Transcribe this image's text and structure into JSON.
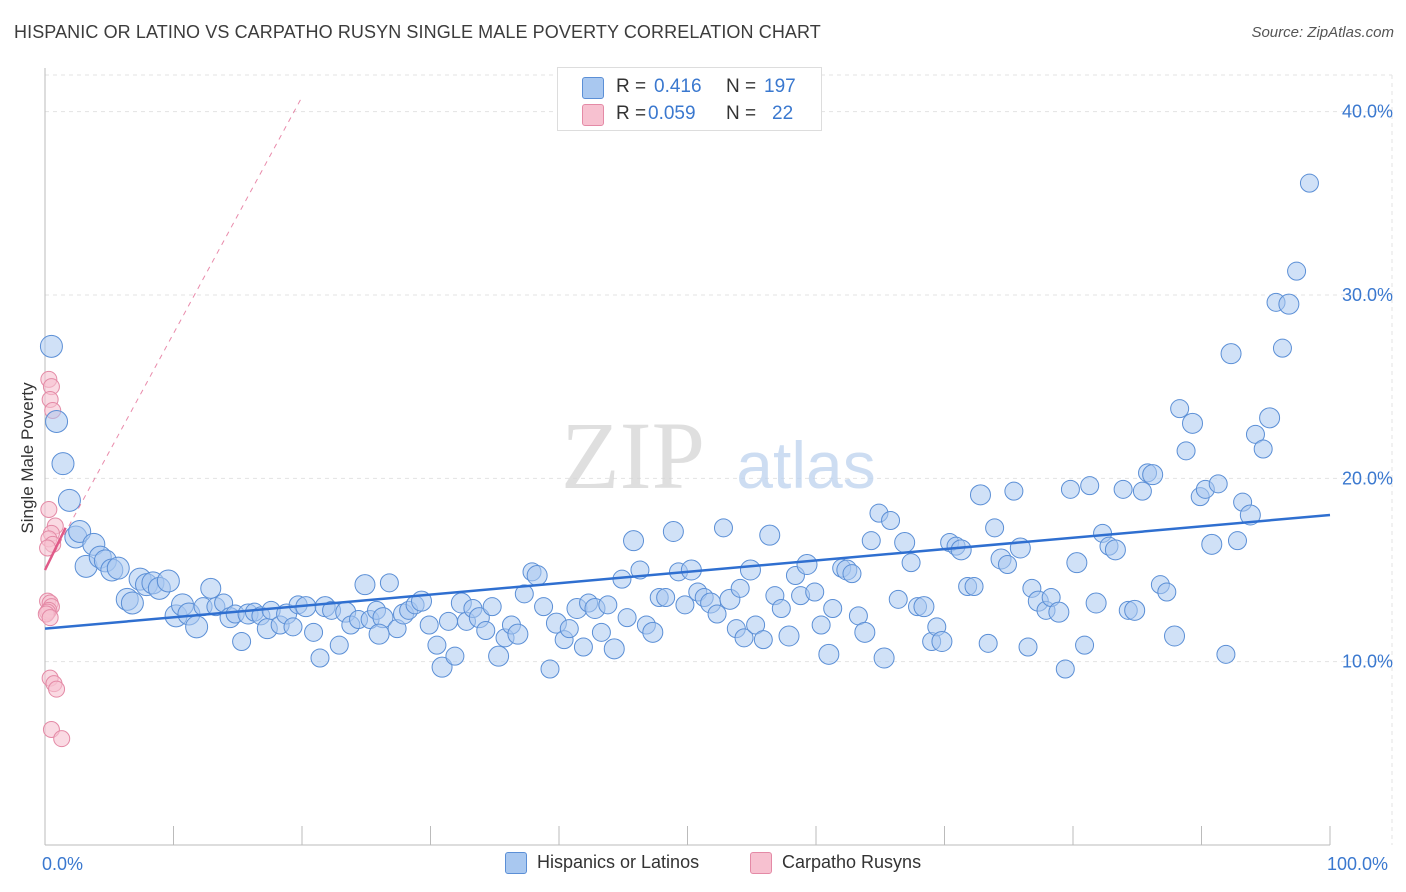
{
  "title": "HISPANIC OR LATINO VS CARPATHO RUSYN SINGLE MALE POVERTY CORRELATION CHART",
  "source": "Source: ZipAtlas.com",
  "watermark": {
    "zip": "ZIP",
    "atlas": "atlas"
  },
  "stats": {
    "r_label": "R =",
    "n_label": "N =",
    "rows": [
      {
        "r": "0.416",
        "n": "197"
      },
      {
        "r": "0.059",
        "n": "22"
      }
    ]
  },
  "legend": {
    "items": [
      {
        "label": "Hispanics or Latinos"
      },
      {
        "label": "Carpatho Rusyns"
      }
    ]
  },
  "colors": {
    "blue_fill": "#a9c8f0",
    "blue_stroke": "#5b8fd6",
    "blue_line": "#2f6fd0",
    "pink_fill": "#f7c1d0",
    "pink_stroke": "#e48aa6",
    "pink_line": "#e05a88",
    "grid": "#e3e3e3",
    "label": "#3a78cf"
  },
  "chart_data": {
    "type": "scatter",
    "title": "HISPANIC OR LATINO VS CARPATHO RUSYN SINGLE MALE POVERTY CORRELATION CHART",
    "xlabel": "",
    "ylabel": "Single Male Poverty",
    "xlim": [
      0,
      100
    ],
    "ylim": [
      0,
      42
    ],
    "x_tick_labels": [
      "0.0%",
      "100.0%"
    ],
    "y_ticks": [
      10,
      20,
      30,
      40
    ],
    "y_tick_labels": [
      "10.0%",
      "20.0%",
      "30.0%",
      "40.0%"
    ],
    "grid": true,
    "series": [
      {
        "name": "Hispanics or Latinos",
        "r": 0.416,
        "n": 197,
        "trend": {
          "x": [
            0,
            100
          ],
          "y": [
            11.8,
            18.0
          ]
        },
        "points": [
          [
            0.5,
            27.2
          ],
          [
            0.9,
            23.1
          ],
          [
            1.4,
            20.8
          ],
          [
            1.9,
            18.8
          ],
          [
            2.4,
            16.8
          ],
          [
            2.7,
            17.1
          ],
          [
            3.2,
            15.2
          ],
          [
            3.8,
            16.4
          ],
          [
            4.3,
            15.7
          ],
          [
            4.7,
            15.5
          ],
          [
            5.2,
            15.0
          ],
          [
            5.7,
            15.1
          ],
          [
            6.4,
            13.4
          ],
          [
            6.8,
            13.2
          ],
          [
            7.4,
            14.5
          ],
          [
            7.9,
            14.2
          ],
          [
            8.4,
            14.3
          ],
          [
            8.9,
            14.0
          ],
          [
            9.6,
            14.4
          ],
          [
            10.2,
            12.5
          ],
          [
            10.7,
            13.1
          ],
          [
            11.2,
            12.6
          ],
          [
            11.8,
            11.9
          ],
          [
            12.3,
            13.0
          ],
          [
            12.9,
            14.0
          ],
          [
            13.3,
            13.0
          ],
          [
            13.9,
            13.2
          ],
          [
            14.4,
            12.4
          ],
          [
            14.8,
            12.6
          ],
          [
            15.3,
            11.1
          ],
          [
            15.8,
            12.6
          ],
          [
            16.3,
            12.7
          ],
          [
            16.8,
            12.5
          ],
          [
            17.3,
            11.8
          ],
          [
            17.6,
            12.8
          ],
          [
            18.3,
            12.0
          ],
          [
            18.8,
            12.6
          ],
          [
            19.3,
            11.9
          ],
          [
            19.7,
            13.1
          ],
          [
            20.3,
            13.0
          ],
          [
            20.9,
            11.6
          ],
          [
            21.4,
            10.2
          ],
          [
            21.8,
            13.0
          ],
          [
            22.3,
            12.8
          ],
          [
            22.9,
            10.9
          ],
          [
            23.4,
            12.7
          ],
          [
            23.8,
            12.0
          ],
          [
            24.4,
            12.3
          ],
          [
            24.9,
            14.2
          ],
          [
            25.3,
            12.3
          ],
          [
            25.8,
            12.8
          ],
          [
            26.3,
            12.4
          ],
          [
            26.8,
            14.3
          ],
          [
            27.4,
            11.8
          ],
          [
            27.9,
            12.6
          ],
          [
            28.3,
            12.8
          ],
          [
            28.8,
            13.1
          ],
          [
            29.3,
            13.3
          ],
          [
            29.9,
            12.0
          ],
          [
            30.5,
            10.9
          ],
          [
            30.9,
            9.7
          ],
          [
            31.4,
            12.2
          ],
          [
            31.9,
            10.3
          ],
          [
            32.4,
            13.2
          ],
          [
            32.8,
            12.2
          ],
          [
            33.3,
            12.9
          ],
          [
            33.8,
            12.4
          ],
          [
            34.3,
            11.7
          ],
          [
            34.8,
            13.0
          ],
          [
            35.3,
            10.3
          ],
          [
            35.8,
            11.3
          ],
          [
            36.3,
            12.0
          ],
          [
            36.8,
            11.5
          ],
          [
            37.3,
            13.7
          ],
          [
            37.9,
            14.9
          ],
          [
            38.3,
            14.7
          ],
          [
            38.8,
            13.0
          ],
          [
            39.3,
            9.6
          ],
          [
            39.8,
            12.1
          ],
          [
            40.4,
            11.2
          ],
          [
            40.8,
            11.8
          ],
          [
            41.4,
            12.9
          ],
          [
            41.9,
            10.8
          ],
          [
            42.3,
            13.2
          ],
          [
            42.8,
            12.9
          ],
          [
            43.3,
            11.6
          ],
          [
            43.8,
            13.1
          ],
          [
            44.3,
            10.7
          ],
          [
            44.9,
            14.5
          ],
          [
            45.3,
            12.4
          ],
          [
            45.8,
            16.6
          ],
          [
            46.3,
            15.0
          ],
          [
            46.8,
            12.0
          ],
          [
            47.3,
            11.6
          ],
          [
            47.8,
            13.5
          ],
          [
            48.3,
            13.5
          ],
          [
            48.9,
            17.1
          ],
          [
            49.3,
            14.9
          ],
          [
            49.8,
            13.1
          ],
          [
            50.3,
            15.0
          ],
          [
            50.8,
            13.8
          ],
          [
            51.3,
            13.5
          ],
          [
            51.8,
            13.2
          ],
          [
            52.3,
            12.6
          ],
          [
            52.8,
            17.3
          ],
          [
            53.3,
            13.4
          ],
          [
            53.8,
            11.8
          ],
          [
            54.4,
            11.3
          ],
          [
            54.9,
            15.0
          ],
          [
            55.3,
            12.0
          ],
          [
            55.9,
            11.2
          ],
          [
            56.4,
            16.9
          ],
          [
            56.8,
            13.6
          ],
          [
            57.3,
            12.9
          ],
          [
            57.9,
            11.4
          ],
          [
            58.4,
            14.7
          ],
          [
            58.8,
            13.6
          ],
          [
            59.3,
            15.3
          ],
          [
            59.9,
            13.8
          ],
          [
            60.4,
            12.0
          ],
          [
            61.0,
            10.4
          ],
          [
            61.3,
            12.9
          ],
          [
            62.0,
            15.1
          ],
          [
            62.4,
            15.0
          ],
          [
            62.8,
            14.8
          ],
          [
            63.3,
            12.5
          ],
          [
            63.8,
            11.6
          ],
          [
            64.3,
            16.6
          ],
          [
            64.9,
            18.1
          ],
          [
            65.3,
            10.2
          ],
          [
            65.8,
            17.7
          ],
          [
            66.4,
            13.4
          ],
          [
            66.9,
            16.5
          ],
          [
            67.4,
            15.4
          ],
          [
            67.9,
            13.0
          ],
          [
            68.4,
            13.0
          ],
          [
            69.0,
            11.1
          ],
          [
            69.4,
            11.9
          ],
          [
            69.8,
            11.1
          ],
          [
            70.4,
            16.5
          ],
          [
            70.9,
            16.3
          ],
          [
            71.3,
            16.1
          ],
          [
            71.8,
            14.1
          ],
          [
            72.3,
            14.1
          ],
          [
            72.8,
            19.1
          ],
          [
            73.4,
            11.0
          ],
          [
            73.9,
            17.3
          ],
          [
            74.4,
            15.6
          ],
          [
            74.9,
            15.3
          ],
          [
            75.4,
            19.3
          ],
          [
            75.9,
            16.2
          ],
          [
            76.5,
            10.8
          ],
          [
            76.8,
            14.0
          ],
          [
            77.3,
            13.3
          ],
          [
            77.9,
            12.8
          ],
          [
            78.3,
            13.5
          ],
          [
            78.9,
            12.7
          ],
          [
            79.4,
            9.6
          ],
          [
            79.8,
            19.4
          ],
          [
            80.3,
            15.4
          ],
          [
            80.9,
            10.9
          ],
          [
            81.3,
            19.6
          ],
          [
            81.8,
            13.2
          ],
          [
            82.3,
            17.0
          ],
          [
            82.8,
            16.3
          ],
          [
            83.3,
            16.1
          ],
          [
            83.9,
            19.4
          ],
          [
            84.3,
            12.8
          ],
          [
            84.8,
            12.8
          ],
          [
            85.4,
            19.3
          ],
          [
            85.8,
            20.3
          ],
          [
            86.2,
            20.2
          ],
          [
            86.8,
            14.2
          ],
          [
            87.3,
            13.8
          ],
          [
            87.9,
            11.4
          ],
          [
            88.3,
            23.8
          ],
          [
            88.8,
            21.5
          ],
          [
            89.3,
            23.0
          ],
          [
            89.9,
            19.0
          ],
          [
            90.3,
            19.4
          ],
          [
            90.8,
            16.4
          ],
          [
            91.3,
            19.7
          ],
          [
            91.9,
            10.4
          ],
          [
            92.3,
            26.8
          ],
          [
            92.8,
            16.6
          ],
          [
            93.2,
            18.7
          ],
          [
            93.8,
            18.0
          ],
          [
            94.2,
            22.4
          ],
          [
            94.8,
            21.6
          ],
          [
            95.3,
            23.3
          ],
          [
            95.8,
            29.6
          ],
          [
            96.3,
            27.1
          ],
          [
            96.8,
            29.5
          ],
          [
            97.4,
            31.3
          ],
          [
            98.4,
            36.1
          ],
          [
            26.0,
            11.5
          ],
          [
            54.1,
            14.0
          ]
        ]
      },
      {
        "name": "Carpatho Rusyns",
        "r": 0.059,
        "n": 22,
        "trend": {
          "x": [
            0,
            1.6
          ],
          "y": [
            15.0,
            17.3
          ]
        },
        "points": [
          [
            0.3,
            25.4
          ],
          [
            0.5,
            25.0
          ],
          [
            0.4,
            24.3
          ],
          [
            0.6,
            23.7
          ],
          [
            0.3,
            18.3
          ],
          [
            0.8,
            17.4
          ],
          [
            0.5,
            17.0
          ],
          [
            0.3,
            16.7
          ],
          [
            0.6,
            16.4
          ],
          [
            0.2,
            16.2
          ],
          [
            0.2,
            13.3
          ],
          [
            0.4,
            13.2
          ],
          [
            0.5,
            13.0
          ],
          [
            0.3,
            12.8
          ],
          [
            0.2,
            12.7
          ],
          [
            0.1,
            12.6
          ],
          [
            0.4,
            12.4
          ],
          [
            0.4,
            9.1
          ],
          [
            0.7,
            8.8
          ],
          [
            0.9,
            8.5
          ],
          [
            0.5,
            6.3
          ],
          [
            1.3,
            5.8
          ]
        ]
      }
    ]
  }
}
